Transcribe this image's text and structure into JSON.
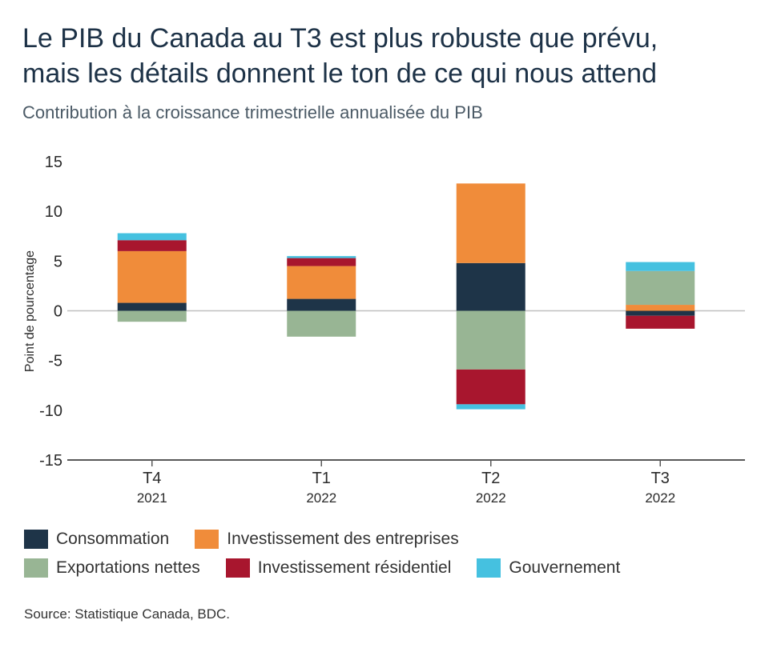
{
  "header": {
    "title_line1": "Le PIB du Canada au T3 est plus robuste que prévu,",
    "title_line2": "mais les détails donnent le ton de ce qui nous attend",
    "subtitle": "Contribution à la croissance trimestrielle annualisée du PIB"
  },
  "source": "Source: Statistique Canada, BDC.",
  "chart_data": {
    "type": "bar",
    "stacked": true,
    "title": "Le PIB du Canada au T3 est plus robuste que prévu, mais les détails donnent le ton de ce qui nous attend",
    "subtitle": "Contribution à la croissance trimestrielle annualisée du PIB",
    "xlabel": "",
    "ylabel": "Point de pourcentage",
    "ylim": [
      -15,
      15
    ],
    "yticks": [
      15,
      10,
      5,
      0,
      -5,
      -10,
      -15
    ],
    "ytick_labels": [
      "15",
      "10",
      "5",
      "0",
      "-5",
      "-10",
      "-15"
    ],
    "categories": [
      {
        "top": "T4",
        "bottom": "2021"
      },
      {
        "top": "T1",
        "bottom": "2022"
      },
      {
        "top": "T2",
        "bottom": "2022"
      },
      {
        "top": "T3",
        "bottom": "2022"
      }
    ],
    "grid": false,
    "legend_position": "bottom",
    "series": [
      {
        "name": "Consommation",
        "color": "#1e3448",
        "values": [
          0.8,
          1.2,
          4.8,
          -0.5
        ]
      },
      {
        "name": "Investissement des entreprises",
        "color": "#f08c3a",
        "values": [
          5.2,
          3.3,
          8.0,
          0.6
        ]
      },
      {
        "name": "Exportations nettes",
        "color": "#98b594",
        "values": [
          -1.1,
          -2.6,
          -5.9,
          3.4
        ]
      },
      {
        "name": "Investissement résidentiel",
        "color": "#a8162e",
        "values": [
          1.1,
          0.8,
          -3.5,
          -1.3
        ]
      },
      {
        "name": "Gouvernement",
        "color": "#45c1e0",
        "values": [
          0.7,
          0.2,
          -0.5,
          0.9
        ]
      }
    ],
    "legend_rows": [
      [
        0,
        1
      ],
      [
        2,
        3,
        4
      ]
    ],
    "zero_line_color": "#bfbfbf",
    "axis_color": "#595959"
  }
}
